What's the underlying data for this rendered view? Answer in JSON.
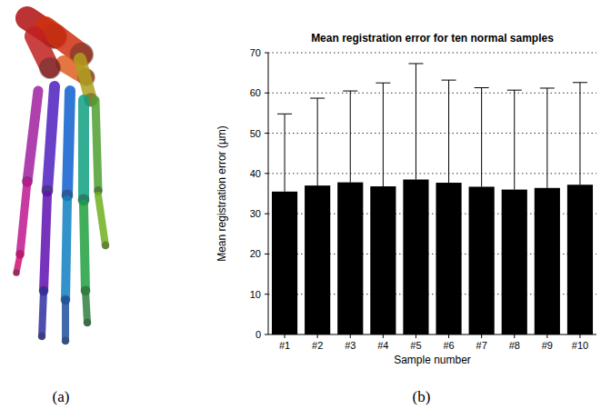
{
  "chart_data": {
    "type": "bar",
    "title": "Mean registration error for ten normal samples",
    "x_label": "Sample number",
    "y_label": "Mean registration error (µm)",
    "categories": [
      "#1",
      "#2",
      "#3",
      "#4",
      "#5",
      "#6",
      "#7",
      "#8",
      "#9",
      "#10"
    ],
    "values": [
      35.5,
      37,
      37.8,
      36.8,
      38.5,
      37.7,
      36.7,
      36,
      36.4,
      37.2
    ],
    "errors": [
      19.3,
      21.7,
      22.7,
      25.7,
      28.8,
      25.5,
      24.6,
      24.7,
      24.8,
      25.4
    ],
    "color": "#000000",
    "ylim": [
      0,
      70
    ],
    "yticks": [
      0,
      10,
      20,
      30,
      40,
      50,
      60,
      70
    ],
    "grid": true
  },
  "panel_labels": [
    "(a)",
    "(b)"
  ]
}
